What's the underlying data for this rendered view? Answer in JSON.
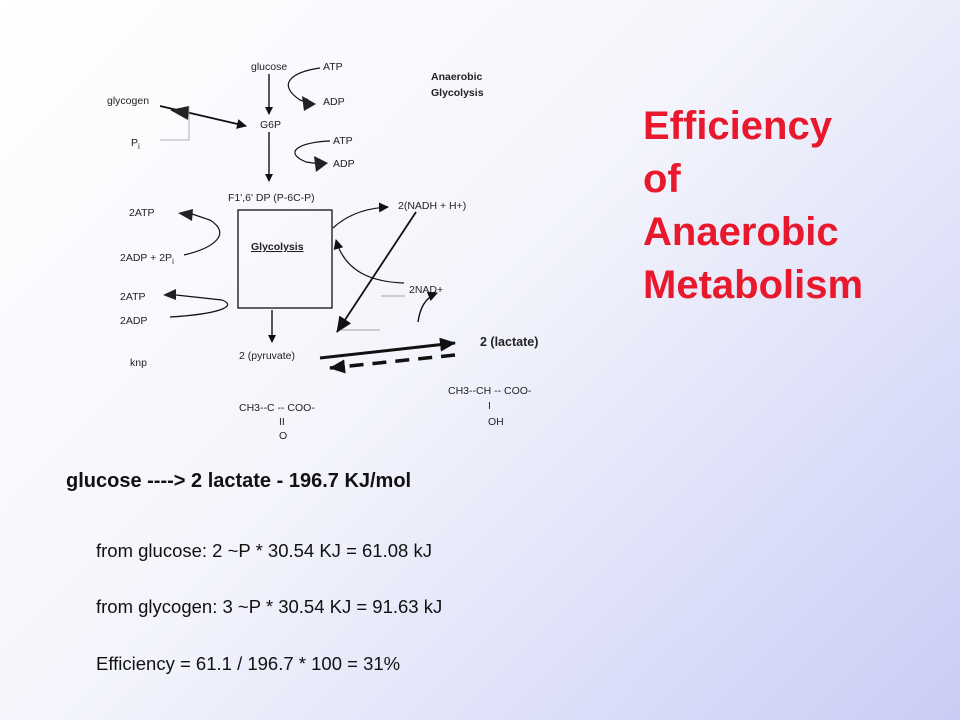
{
  "slide": {
    "title_lines": [
      "Efficiency",
      "of",
      "Anaerobic",
      "Metabolism"
    ],
    "title_color": "#e8192c",
    "equation": "glucose  ----> 2 lactate - 196.7 KJ/mol",
    "calculations": [
      "from glucose: 2 ~P * 30.54 KJ = 61.08 kJ",
      "from glycogen: 3 ~P * 30.54 KJ = 91.63 kJ",
      "Efficiency = 61.1 / 196.7  * 100 = 31%"
    ]
  },
  "diagram": {
    "heading_line1": "Anaerobic",
    "heading_line2": "Glycolysis",
    "glucose": "glucose",
    "atp_1": "ATP",
    "adp_1": "ADP",
    "glycogen": "glycogen",
    "pi_P": "P",
    "pi_sub": "i",
    "g6p": "G6P",
    "atp_2": "ATP",
    "adp_2": "ADP",
    "f16dp": "F1',6' DP (P-6C-P)",
    "glycolysis_box": "Glycolysis",
    "two_atp_1": "2ATP",
    "two_adp_2pi": "2ADP + 2P",
    "two_adp_2pi_sub": "i",
    "two_atp_2": "2ATP",
    "two_adp": "2ADP",
    "knp": "knp",
    "two_nadh": "2(NADH + H+)",
    "two_nad": "2NAD+",
    "two_pyruvate": "2 (pyruvate)",
    "two_lactate": "2 (lactate)",
    "pyruvate_formula_1": "CH3--C -- COO-",
    "pyruvate_formula_2": "II",
    "pyruvate_formula_3": "O",
    "lactate_formula_1": "CH3--CH -- COO-",
    "lactate_formula_2": "I",
    "lactate_formula_3": "OH"
  }
}
